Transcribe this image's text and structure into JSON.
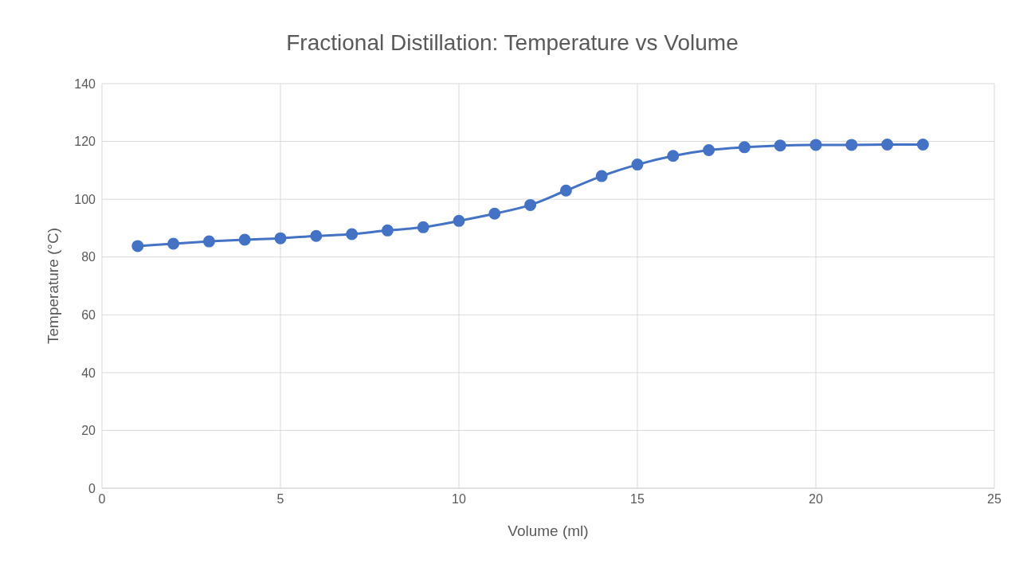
{
  "chart_data": {
    "type": "line",
    "title": "Fractional Distillation: Temperature vs Volume",
    "xlabel": "Volume (ml)",
    "ylabel": "Temperature (°C)",
    "x": [
      1,
      2,
      3,
      4,
      5,
      6,
      7,
      8,
      9,
      10,
      11,
      12,
      13,
      14,
      15,
      16,
      17,
      18,
      19,
      20,
      21,
      22,
      23
    ],
    "series": [
      {
        "color": "#4472c4",
        "values": [
          83.8,
          84.6,
          85.4,
          86,
          86.5,
          87.3,
          87.9,
          89.2,
          90.3,
          92.5,
          95,
          98,
          103,
          108,
          112,
          115,
          117,
          118,
          118.6,
          118.8,
          118.8,
          118.9,
          118.9
        ]
      }
    ],
    "xlim": [
      0,
      25
    ],
    "xticks": [
      0,
      5,
      10,
      15,
      20,
      25
    ],
    "ylim": [
      0,
      140
    ],
    "yticks": [
      0,
      20,
      40,
      60,
      80,
      100,
      120,
      140
    ],
    "grid": true,
    "marker": "circle",
    "line_style": "solid"
  }
}
